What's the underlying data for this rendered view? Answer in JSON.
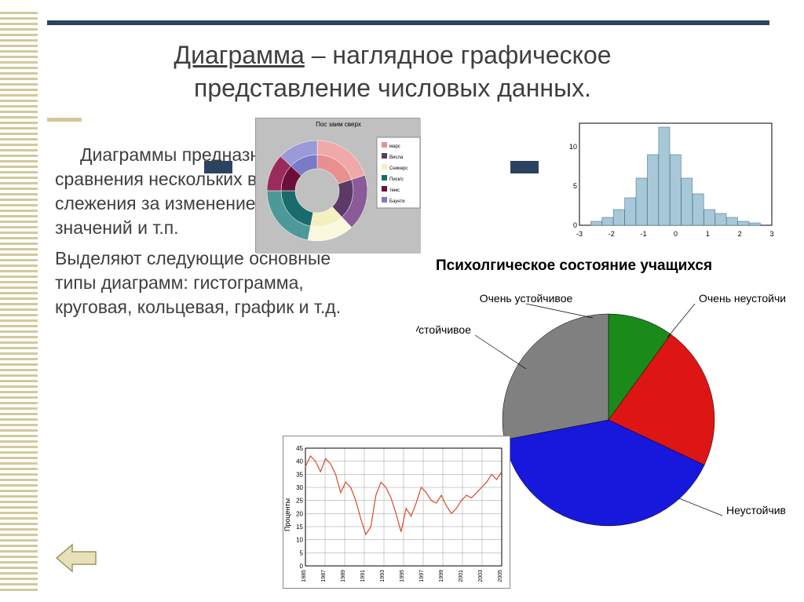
{
  "title": {
    "underlined": "Диаграмма",
    "rest": " – наглядное графическое представление числовых данных.",
    "fontsize": 32,
    "color": "#3f3f3f"
  },
  "body": {
    "p1": "     Диаграммы предназначены для сравнения нескольких величин и слежения за изменением их значений и т.п.",
    "p2": "Выделяют следующие основные типы диаграмм: гистограмма, круговая, кольцевая, график и т.д.",
    "fontsize": 23,
    "color": "#3f3f3f"
  },
  "accent_bar_color": "#2b4360",
  "binding_color": "#d4c89a",
  "donut": {
    "type": "donut",
    "title": "Пос заим сверх",
    "title_fontsize": 8,
    "background": "#c0c0c0",
    "inner_ring": {
      "segments": [
        {
          "value": 20,
          "color": "#e89090"
        },
        {
          "value": 18,
          "color": "#5b3b66"
        },
        {
          "value": 15,
          "color": "#f5f0c0"
        },
        {
          "value": 22,
          "color": "#1a6b6b"
        },
        {
          "value": 12,
          "color": "#6b0f3a"
        },
        {
          "value": 13,
          "color": "#7a7ac8"
        }
      ]
    },
    "outer_ring": {
      "segments": [
        {
          "value": 20,
          "color": "#f0a8a8"
        },
        {
          "value": 18,
          "color": "#8a5a99"
        },
        {
          "value": 15,
          "color": "#faf8dd"
        },
        {
          "value": 22,
          "color": "#4d9999"
        },
        {
          "value": 12,
          "color": "#9a2b5c"
        },
        {
          "value": 13,
          "color": "#9a9ad8"
        }
      ]
    },
    "legend": {
      "items": [
        "марс",
        "Висла",
        "Сникерс",
        "Писк/c",
        "темс",
        "Баунти"
      ],
      "colors": [
        "#e89090",
        "#5b3b66",
        "#f5f0c0",
        "#1a6b6b",
        "#6b0f3a",
        "#7a7ac8"
      ],
      "fontsize": 6
    }
  },
  "histogram": {
    "type": "histogram",
    "x_values": [
      -3,
      -2,
      -1,
      0,
      1,
      2,
      3
    ],
    "y_values": [
      0,
      0.5,
      1,
      2,
      3.5,
      6,
      9,
      12.5,
      9,
      6,
      4,
      2,
      1.5,
      1,
      0.5,
      0.3,
      0
    ],
    "bar_color": "#a8c8d8",
    "bar_border": "#4a7a9a",
    "xlim": [
      -3,
      3
    ],
    "ylim": [
      0,
      13
    ],
    "ytick_step": 5,
    "grid": false,
    "axis_color": "#000000",
    "label_fontsize": 8
  },
  "pie": {
    "type": "pie",
    "title": "Психолгическое состояние учащихся",
    "title_fontsize": 19,
    "slices": [
      {
        "label": "Очень устойчивое",
        "value": 10,
        "color": "#1a8a1a"
      },
      {
        "label": "Очень неустойчивое",
        "value": 22,
        "color": "#dd1515"
      },
      {
        "label": "Неустойчивое",
        "value": 40,
        "color": "#1818dd"
      },
      {
        "label": "Устойчивое",
        "value": 28,
        "color": "#808080"
      }
    ],
    "label_fontsize": 14,
    "label_color": "#000000"
  },
  "line": {
    "type": "line",
    "ylabel": "Проценты",
    "ylim": [
      0,
      45
    ],
    "ytick_step": 5,
    "x_categories": [
      "1985",
      "1987",
      "1989",
      "1991",
      "1993",
      "1995",
      "1997",
      "1999",
      "2001",
      "2003",
      "2005"
    ],
    "series": [
      {
        "color": "#d84a2a",
        "width": 1.2,
        "points": [
          38,
          42,
          40,
          36,
          41,
          39,
          35,
          28,
          32,
          30,
          25,
          18,
          12,
          15,
          27,
          32,
          30,
          26,
          20,
          13,
          22,
          19,
          24,
          30,
          28,
          25,
          24,
          27,
          23,
          20,
          22,
          25,
          27,
          26,
          28,
          30,
          32,
          35,
          33,
          36
        ]
      }
    ],
    "grid_color": "#999999",
    "background": "#ffffff",
    "label_fontsize": 8
  },
  "back_arrow": {
    "fill": "#e8e0b8",
    "stroke": "#999966"
  }
}
